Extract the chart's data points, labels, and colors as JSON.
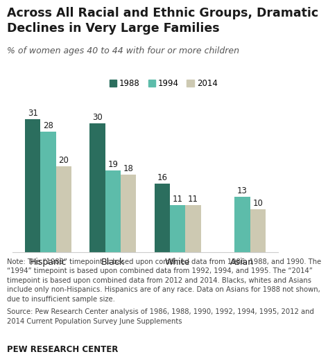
{
  "title": "Across All Racial and Ethnic Groups, Dramatic\nDeclines in Very Large Families",
  "subtitle": "% of women ages 40 to 44 with four or more children",
  "categories": [
    "Hispanic",
    "Black",
    "White",
    "Asian"
  ],
  "series": {
    "1988": [
      31,
      30,
      16,
      null
    ],
    "1994": [
      28,
      19,
      11,
      13
    ],
    "2014": [
      20,
      18,
      11,
      10
    ]
  },
  "colors": {
    "1988": "#2b6e5e",
    "1994": "#5dbcaa",
    "2014": "#cdc9b2"
  },
  "legend_labels": [
    "1988",
    "1994",
    "2014"
  ],
  "ylim": [
    0,
    35
  ],
  "note": "Note: The “1988” timepoint is based upon combined data from 1986, 1988, and 1990. The\n“1994” timepoint is based upon combined data from 1992, 1994, and 1995. The “2014”\ntimepoint is based upon combined data from 2012 and 2014. Blacks, whites and Asians\ninclude only non-Hispanics. Hispanics are of any race. Data on Asians for 1988 not shown,\ndue to insufficient sample size.",
  "source": "Source: Pew Research Center analysis of 1986, 1988, 1990, 1992, 1994, 1995, 2012 and\n2014 Current Population Survey June Supplements",
  "branding": "PEW RESEARCH CENTER",
  "bar_width": 0.24,
  "title_fontsize": 12.5,
  "subtitle_fontsize": 9,
  "label_fontsize": 8.5,
  "note_fontsize": 7.2,
  "background_color": "#ffffff",
  "text_color_dark": "#1a1a1a",
  "text_color_note": "#444444",
  "subtitle_color": "#555555"
}
